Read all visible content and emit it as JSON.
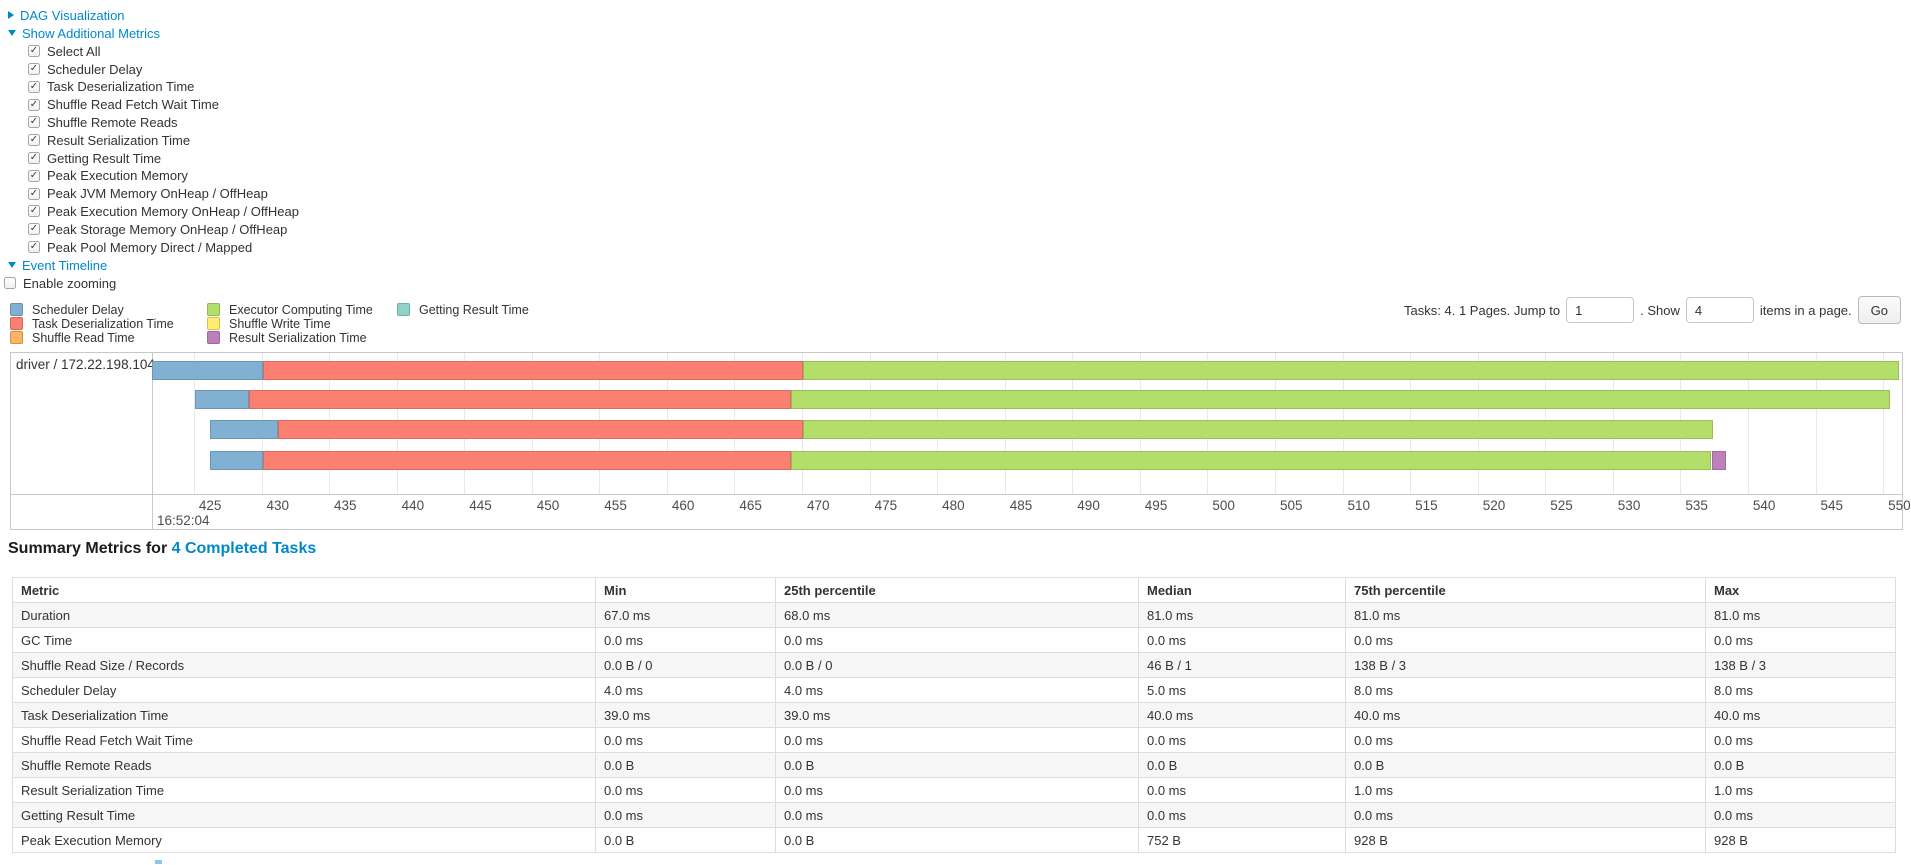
{
  "controls": {
    "dag": {
      "label": "DAG Visualization",
      "state": "collapsed"
    },
    "additional_metrics": {
      "label": "Show Additional Metrics",
      "state": "expanded",
      "items": [
        {
          "label": "Select All",
          "checked": true
        },
        {
          "label": "Scheduler Delay",
          "checked": true
        },
        {
          "label": "Task Deserialization Time",
          "checked": true
        },
        {
          "label": "Shuffle Read Fetch Wait Time",
          "checked": true
        },
        {
          "label": "Shuffle Remote Reads",
          "checked": true
        },
        {
          "label": "Result Serialization Time",
          "checked": true
        },
        {
          "label": "Getting Result Time",
          "checked": true
        },
        {
          "label": "Peak Execution Memory",
          "checked": true
        },
        {
          "label": "Peak JVM Memory OnHeap / OffHeap",
          "checked": true
        },
        {
          "label": "Peak Execution Memory OnHeap / OffHeap",
          "checked": true
        },
        {
          "label": "Peak Storage Memory OnHeap / OffHeap",
          "checked": true
        },
        {
          "label": "Peak Pool Memory Direct / Mapped",
          "checked": true
        }
      ]
    },
    "event_timeline": {
      "label": "Event Timeline",
      "state": "expanded"
    },
    "enable_zooming": {
      "label": "Enable zooming",
      "checked": false
    }
  },
  "pagination": {
    "prefix": "Tasks: 4. 1 Pages. Jump to",
    "jump_value": "1",
    "mid": ". Show",
    "show_value": "4",
    "suffix": "items in a page.",
    "go_label": "Go"
  },
  "chart_data": {
    "type": "timeline-gantt",
    "group_label": "driver / 172.22.198.104",
    "axis": {
      "unit": "milliseconds within second 16:52:04",
      "major_label": "16:52:04",
      "start": 421.9,
      "end": 551.4,
      "tick_start": 425,
      "tick_end": 550,
      "tick_step": 5
    },
    "colors": {
      "scheduler-delay": "#80b1d3",
      "task-deserialization": "#fb8072",
      "shuffle-read": "#fdb462",
      "executor-computing": "#b3de69",
      "shuffle-write": "#ffed6f",
      "result-serialization": "#bc80bd",
      "getting-result": "#8dd3c7"
    },
    "legend": [
      {
        "label": "Scheduler Delay",
        "type": "scheduler-delay"
      },
      {
        "label": "Task Deserialization Time",
        "type": "task-deserialization"
      },
      {
        "label": "Shuffle Read Time",
        "type": "shuffle-read"
      },
      {
        "label": "Executor Computing Time",
        "type": "executor-computing"
      },
      {
        "label": "Shuffle Write Time",
        "type": "shuffle-write"
      },
      {
        "label": "Result Serialization Time",
        "type": "result-serialization"
      },
      {
        "label": "Getting Result Time",
        "type": "getting-result"
      }
    ],
    "tasks": [
      {
        "row": 0,
        "segments": [
          {
            "type": "scheduler-delay",
            "start": 421.9,
            "end": 430.1
          },
          {
            "type": "task-deserialization",
            "start": 430.1,
            "end": 470.1
          },
          {
            "type": "executor-computing",
            "start": 470.1,
            "end": 551.2
          }
        ]
      },
      {
        "row": 1,
        "segments": [
          {
            "type": "scheduler-delay",
            "start": 425.1,
            "end": 429.1
          },
          {
            "type": "task-deserialization",
            "start": 429.1,
            "end": 469.2
          },
          {
            "type": "executor-computing",
            "start": 469.2,
            "end": 550.5
          }
        ]
      },
      {
        "row": 2,
        "segments": [
          {
            "type": "scheduler-delay",
            "start": 426.2,
            "end": 431.2
          },
          {
            "type": "task-deserialization",
            "start": 431.2,
            "end": 470.1
          },
          {
            "type": "executor-computing",
            "start": 470.1,
            "end": 537.4
          }
        ]
      },
      {
        "row": 3,
        "segments": [
          {
            "type": "scheduler-delay",
            "start": 426.2,
            "end": 430.1
          },
          {
            "type": "task-deserialization",
            "start": 430.1,
            "end": 469.2
          },
          {
            "type": "executor-computing",
            "start": 469.2,
            "end": 537.3
          },
          {
            "type": "result-serialization",
            "start": 537.3,
            "end": 538.4
          }
        ]
      }
    ]
  },
  "summary": {
    "title_prefix": "Summary Metrics for ",
    "title_link": "4 Completed Tasks",
    "table": {
      "headers": [
        "Metric",
        "Min",
        "25th percentile",
        "Median",
        "75th percentile",
        "Max"
      ],
      "rows": [
        {
          "metric": "Duration",
          "values": [
            "67.0 ms",
            "68.0 ms",
            "81.0 ms",
            "81.0 ms",
            "81.0 ms"
          ]
        },
        {
          "metric": "GC Time",
          "values": [
            "0.0 ms",
            "0.0 ms",
            "0.0 ms",
            "0.0 ms",
            "0.0 ms"
          ]
        },
        {
          "metric": "Shuffle Read Size / Records",
          "values": [
            "0.0 B / 0",
            "0.0 B / 0",
            "46 B / 1",
            "138 B / 3",
            "138 B / 3"
          ]
        },
        {
          "metric": "Scheduler Delay",
          "values": [
            "4.0 ms",
            "4.0 ms",
            "5.0 ms",
            "8.0 ms",
            "8.0 ms"
          ]
        },
        {
          "metric": "Task Deserialization Time",
          "values": [
            "39.0 ms",
            "39.0 ms",
            "40.0 ms",
            "40.0 ms",
            "40.0 ms"
          ]
        },
        {
          "metric": "Shuffle Read Fetch Wait Time",
          "values": [
            "0.0 ms",
            "0.0 ms",
            "0.0 ms",
            "0.0 ms",
            "0.0 ms"
          ]
        },
        {
          "metric": "Shuffle Remote Reads",
          "values": [
            "0.0 B",
            "0.0 B",
            "0.0 B",
            "0.0 B",
            "0.0 B"
          ]
        },
        {
          "metric": "Result Serialization Time",
          "values": [
            "0.0 ms",
            "0.0 ms",
            "0.0 ms",
            "1.0 ms",
            "1.0 ms"
          ]
        },
        {
          "metric": "Getting Result Time",
          "values": [
            "0.0 ms",
            "0.0 ms",
            "0.0 ms",
            "0.0 ms",
            "0.0 ms"
          ]
        },
        {
          "metric": "Peak Execution Memory",
          "values": [
            "0.0 B",
            "0.0 B",
            "752 B",
            "928 B",
            "928 B"
          ]
        }
      ]
    }
  }
}
